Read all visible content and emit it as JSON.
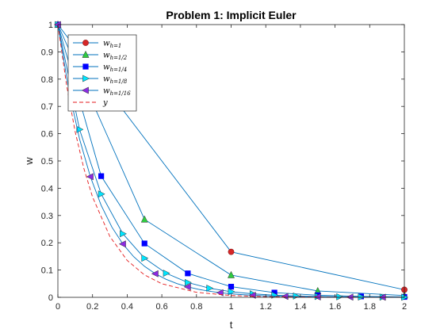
{
  "chart_data": {
    "type": "line",
    "title": "Problem 1: Implicit Euler",
    "xlabel": "t",
    "ylabel": "w",
    "xlim": [
      0,
      2
    ],
    "ylim": [
      0,
      1
    ],
    "xticks": [
      "0",
      "0.2",
      "0.4",
      "0.6",
      "0.8",
      "1",
      "1.2",
      "1.4",
      "1.6",
      "1.8",
      "2"
    ],
    "yticks": [
      "0",
      "0.1",
      "0.2",
      "0.3",
      "0.4",
      "0.5",
      "0.6",
      "0.7",
      "0.8",
      "0.9",
      "1"
    ],
    "grid": false,
    "legend_position": "top-left",
    "line_color": "#0072BD",
    "series": [
      {
        "name": "w_{h=1}",
        "marker": "circle",
        "marker_color": "#D62728",
        "x": [
          0,
          1,
          2
        ],
        "y": [
          1,
          0.1667,
          0.0278
        ]
      },
      {
        "name": "w_{h=1/2}",
        "marker": "triangle-up",
        "marker_color": "#2ECC40",
        "x": [
          0,
          0.5,
          1,
          1.5,
          2
        ],
        "y": [
          1,
          0.2857,
          0.0816,
          0.0233,
          0.0067
        ]
      },
      {
        "name": "w_{h=1/4}",
        "marker": "square",
        "marker_color": "#0000FF",
        "x": [
          0,
          0.25,
          0.5,
          0.75,
          1,
          1.25,
          1.5,
          1.75,
          2
        ],
        "y": [
          1,
          0.4444,
          0.1975,
          0.0878,
          0.039,
          0.0173,
          0.0077,
          0.0034,
          0.0015
        ]
      },
      {
        "name": "w_{h=1/8}",
        "marker": "triangle-right",
        "marker_color": "#00E5FF",
        "x": [
          0,
          0.125,
          0.25,
          0.375,
          0.5,
          0.625,
          0.75,
          0.875,
          1,
          1.125,
          1.25,
          1.375,
          1.5,
          1.625,
          1.75,
          1.875,
          2
        ],
        "y": [
          1,
          0.6154,
          0.3787,
          0.2331,
          0.1434,
          0.0883,
          0.0543,
          0.0334,
          0.0206,
          0.0127,
          0.0078,
          0.0048,
          0.003,
          0.0018,
          0.0011,
          0.0007,
          0.0004
        ]
      },
      {
        "name": "w_{h=1/16}",
        "marker": "triangle-left",
        "marker_color": "#8B2BE2",
        "x": [
          0,
          0.0625,
          0.125,
          0.1875,
          0.25,
          0.3125,
          0.375,
          0.4375,
          0.5,
          0.5625,
          0.625,
          0.6875,
          0.75,
          0.8125,
          0.875,
          0.9375,
          1,
          1.0625,
          1.125,
          1.1875,
          1.25,
          1.3125,
          1.375,
          1.4375,
          1.5,
          1.5625,
          1.625,
          1.6875,
          1.75,
          1.8125,
          1.875,
          1.9375,
          2
        ],
        "y": [
          1,
          0.7619,
          0.5805,
          0.4423,
          0.337,
          0.2567,
          0.1956,
          0.149,
          0.1136,
          0.0865,
          0.0659,
          0.0502,
          0.0383,
          0.0292,
          0.0222,
          0.0169,
          0.0129,
          0.0098,
          0.0075,
          0.0057,
          0.0044,
          0.0033,
          0.0025,
          0.0019,
          0.0015,
          0.0011,
          0.0009,
          0.0007,
          0.0005,
          0.0004,
          0.0003,
          0.0002,
          0.0002
        ],
        "marker_every": 3
      },
      {
        "name": "y",
        "marker": "none",
        "line_color": "#E41A1C",
        "line_style": "dashed",
        "function": "exp(-5t)",
        "x": [
          0,
          0.05,
          0.1,
          0.15,
          0.2,
          0.3,
          0.4,
          0.5,
          0.6,
          0.8,
          1,
          1.2,
          1.5,
          2
        ],
        "y": [
          1,
          0.7788,
          0.6065,
          0.4724,
          0.3679,
          0.2231,
          0.1353,
          0.0821,
          0.0498,
          0.0183,
          0.0067,
          0.0025,
          0.0006,
          0
        ]
      }
    ],
    "legend_labels": [
      {
        "base": "w",
        "sub": "h=1"
      },
      {
        "base": "w",
        "sub": "h=1/2"
      },
      {
        "base": "w",
        "sub": "h=1/4"
      },
      {
        "base": "w",
        "sub": "h=1/8"
      },
      {
        "base": "w",
        "sub": "h=1/16"
      },
      {
        "base": "y",
        "sub": ""
      }
    ]
  }
}
